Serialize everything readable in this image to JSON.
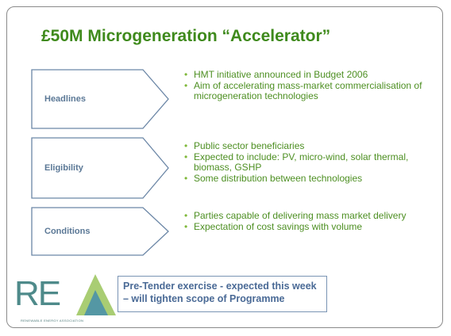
{
  "title": "£50M Microgeneration “Accelerator”",
  "sections": [
    {
      "label": "Headlines",
      "bullets": [
        "HMT initiative announced in Budget 2006",
        "Aim of accelerating mass-market commercialisation of microgeneration technologies"
      ]
    },
    {
      "label": "Eligibility",
      "bullets": [
        "Public sector beneficiaries",
        "Expected to include: PV, micro-wind, solar thermal, biomass, GSHP",
        "Some distribution between technologies"
      ]
    },
    {
      "label": "Conditions",
      "bullets": [
        "Parties capable of delivering mass market delivery",
        "Expectation of cost savings with volume"
      ]
    }
  ],
  "callout": "Pre-Tender exercise - expected this week – will tighten scope of Programme",
  "logo": {
    "mark": "RE",
    "tagline": "RENEWABLE ENERGY ASSOCIATION"
  }
}
